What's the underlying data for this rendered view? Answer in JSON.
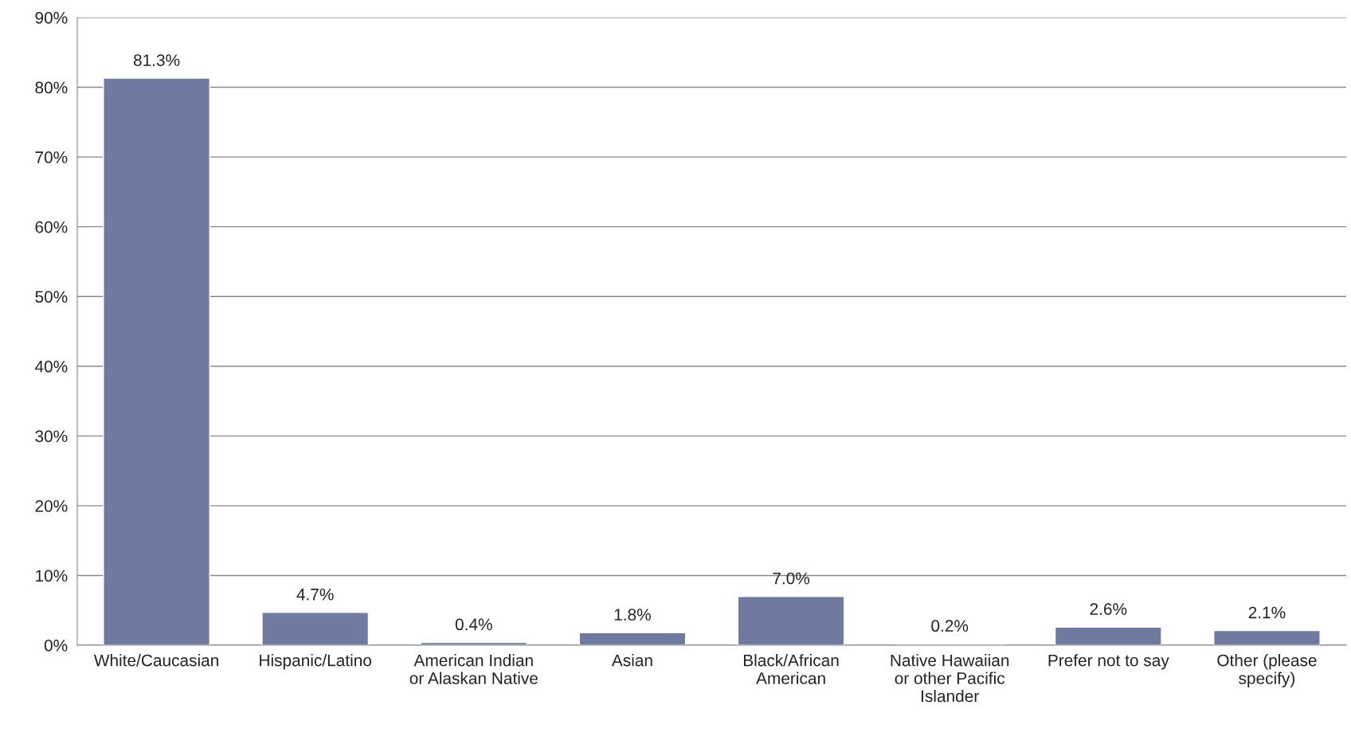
{
  "chart_data": {
    "type": "bar",
    "categories": [
      "White/Caucasian",
      "Hispanic/Latino",
      "American Indian\nor Alaskan Native",
      "Asian",
      "Black/African\nAmerican",
      "Native Hawaiian\nor other Pacific\nIslander",
      "Prefer not to say",
      "Other (please\nspecify)"
    ],
    "values": [
      81.3,
      4.7,
      0.4,
      1.8,
      7.0,
      0.2,
      2.6,
      2.1
    ],
    "value_labels": [
      "81.3%",
      "4.7%",
      "0.4%",
      "1.8%",
      "7.0%",
      "0.2%",
      "2.6%",
      "2.1%"
    ],
    "color": "#6f7aa0",
    "ylim": [
      0,
      90
    ],
    "yticks": [
      {
        "value": 0,
        "label": "0%"
      },
      {
        "value": 10,
        "label": "10%"
      },
      {
        "value": 20,
        "label": "20%"
      },
      {
        "value": 30,
        "label": "30%"
      },
      {
        "value": 40,
        "label": "40%"
      },
      {
        "value": 50,
        "label": "50%"
      },
      {
        "value": 60,
        "label": "60%"
      },
      {
        "value": 70,
        "label": "70%"
      },
      {
        "value": 80,
        "label": "80%"
      },
      {
        "value": 90,
        "label": "90%"
      }
    ],
    "grid": "y"
  }
}
